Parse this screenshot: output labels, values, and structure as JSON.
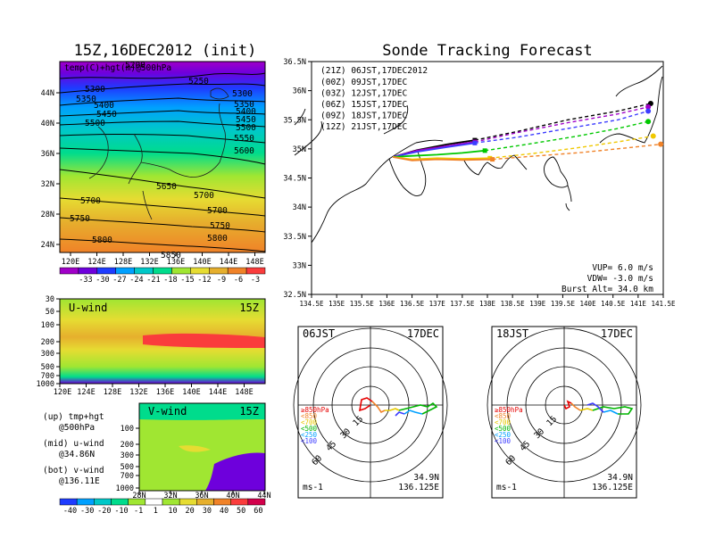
{
  "left": {
    "title": "15Z,16DEC2012 (init)",
    "top_map": {
      "label": "temp(C)+hgt(m)@500hPa",
      "x_ticks": [
        "120E",
        "124E",
        "128E",
        "132E",
        "136E",
        "140E",
        "144E",
        "148E"
      ],
      "y_ticks": [
        "44N",
        "40N",
        "36N",
        "32N",
        "28N",
        "24N"
      ],
      "contour_labels": [
        "5200",
        "5250",
        "5300",
        "5300",
        "5350",
        "5350",
        "5400",
        "5400",
        "5450",
        "5450",
        "5500",
        "5500",
        "5550",
        "5600",
        "5650",
        "5700",
        "5700",
        "5700",
        "5750",
        "5750",
        "5800",
        "5800",
        "5850"
      ],
      "colorbar_labels": [
        "-33",
        "-30",
        "-27",
        "-24",
        "-21",
        "-18",
        "-15",
        "-12",
        "-9",
        "-6",
        "-3"
      ],
      "colorbar_colors": [
        "#a000c8",
        "#6e00dc",
        "#1e3cff",
        "#00a0ff",
        "#00c8c8",
        "#00dc8c",
        "#a0e632",
        "#e6dc32",
        "#e6af2d",
        "#f08228",
        "#fa3c3c"
      ]
    },
    "u_wind": {
      "label": "U-wind",
      "time": "15Z",
      "y_ticks": [
        "30",
        "50",
        "100",
        "200",
        "300",
        "500",
        "700",
        "1000"
      ],
      "x_ticks": [
        "120E",
        "124E",
        "128E",
        "132E",
        "136E",
        "140E",
        "144E",
        "148E"
      ]
    },
    "v_wind": {
      "label": "V-wind",
      "time": "15Z",
      "y_ticks": [
        "100",
        "200",
        "300",
        "500",
        "700",
        "1000"
      ],
      "x_ticks": [
        "28N",
        "32N",
        "36N",
        "40N",
        "44N"
      ]
    },
    "legend_text": [
      {
        "a": "(up) tmp+hgt",
        "b": "@500hPa"
      },
      {
        "a": "(mid) u-wind",
        "b": "@34.86N"
      },
      {
        "a": "(bot) v-wind",
        "b": "@136.11E"
      }
    ],
    "wind_colorbar": {
      "labels": [
        "-40",
        "-30",
        "-20",
        "-10",
        "-1",
        "1",
        "10",
        "20",
        "30",
        "40",
        "50",
        "60"
      ],
      "colors": [
        "#1e3cff",
        "#00a0ff",
        "#00c8c8",
        "#00dc8c",
        "#a0e632",
        "#ffffff",
        "#a0e632",
        "#e6dc32",
        "#e6af2d",
        "#f08228",
        "#fa3c3c",
        "#d2004b"
      ]
    }
  },
  "right": {
    "title": "Sonde Tracking Forecast",
    "header_time": "(21Z) 06JST,17DEC2012",
    "tracks": [
      {
        "label": "(00Z) 09JST,17DEC",
        "color": "#a000c8"
      },
      {
        "label": "(03Z) 12JST,17DEC",
        "color": "#3c3cff"
      },
      {
        "label": "(06Z) 15JST,17DEC",
        "color": "#00c800"
      },
      {
        "label": "(09Z) 18JST,17DEC",
        "color": "#f0c800"
      },
      {
        "label": "(12Z) 21JST,17DEC",
        "color": "#f08228"
      }
    ],
    "x_ticks": [
      "134.5E",
      "135E",
      "135.5E",
      "136E",
      "136.5E",
      "137E",
      "137.5E",
      "138E",
      "138.5E",
      "139E",
      "139.5E",
      "140E",
      "140.5E",
      "141E",
      "141.5E"
    ],
    "y_ticks": [
      "36.5N",
      "36N",
      "35.5N",
      "35N",
      "34.5N",
      "34N",
      "33.5N",
      "33N",
      "32.5N"
    ],
    "params": [
      "VUP=  6.0 m/s",
      "VDW= -3.0 m/s",
      "Burst Alt= 34.0 km"
    ]
  },
  "hodographs": [
    {
      "time": "06JST",
      "date": "17DEC",
      "lat": "34.9N",
      "lon": "136.125E",
      "unit": "ms-1",
      "rings": [
        "15",
        "30",
        "45",
        "60"
      ],
      "levels": [
        {
          "t": "≥850hPa",
          "c": "#e60000"
        },
        {
          "t": "<850",
          "c": "#f08228"
        },
        {
          "t": "<700",
          "c": "#e6c800"
        },
        {
          "t": "<500",
          "c": "#00b400"
        },
        {
          "t": "<250",
          "c": "#00a0ff"
        },
        {
          "t": "<100",
          "c": "#3c3cff"
        }
      ]
    },
    {
      "time": "18JST",
      "date": "17DEC",
      "lat": "34.9N",
      "lon": "136.125E",
      "unit": "ms-1",
      "rings": [
        "15",
        "30",
        "45",
        "60"
      ],
      "levels": [
        {
          "t": "≥850hPa",
          "c": "#e60000"
        },
        {
          "t": "<850",
          "c": "#f08228"
        },
        {
          "t": "<700",
          "c": "#e6c800"
        },
        {
          "t": "<500",
          "c": "#00b400"
        },
        {
          "t": "<250",
          "c": "#00a0ff"
        },
        {
          "t": "<100",
          "c": "#3c3cff"
        }
      ]
    }
  ],
  "chart_data": {
    "type": "line",
    "title": "Sonde Tracking Forecast",
    "xlim": [
      134.5,
      141.5
    ],
    "ylim": [
      32.5,
      36.5
    ],
    "launch": {
      "lon": 136.12,
      "lat": 34.86
    },
    "series": [
      {
        "name": "(21Z) 06JST,17DEC2012",
        "color": "#000000",
        "solid": [
          [
            136.12,
            34.86
          ],
          [
            136.6,
            34.98
          ],
          [
            137.2,
            35.08
          ],
          [
            137.75,
            35.15
          ]
        ],
        "dash": [
          [
            137.75,
            35.15
          ],
          [
            138.6,
            35.3
          ],
          [
            139.6,
            35.5
          ],
          [
            140.6,
            35.65
          ],
          [
            141.25,
            35.78
          ]
        ],
        "marker": [
          137.75,
          35.15
        ],
        "end": [
          141.25,
          35.78
        ]
      },
      {
        "name": "(00Z) 09JST,17DEC",
        "color": "#a000c8",
        "solid": [
          [
            136.12,
            34.86
          ],
          [
            136.6,
            34.97
          ],
          [
            137.2,
            35.05
          ],
          [
            137.75,
            35.12
          ]
        ],
        "dash": [
          [
            137.75,
            35.12
          ],
          [
            138.6,
            35.28
          ],
          [
            139.6,
            35.45
          ],
          [
            140.6,
            35.6
          ],
          [
            141.2,
            35.72
          ]
        ],
        "marker": [
          137.75,
          35.12
        ],
        "end": [
          141.2,
          35.72
        ]
      },
      {
        "name": "(03Z) 12JST,17DEC",
        "color": "#3c3cff",
        "solid": [
          [
            136.12,
            34.86
          ],
          [
            136.6,
            34.95
          ],
          [
            137.2,
            35.03
          ],
          [
            137.75,
            35.1
          ]
        ],
        "dash": [
          [
            137.75,
            35.1
          ],
          [
            138.6,
            35.2
          ],
          [
            139.6,
            35.35
          ],
          [
            140.6,
            35.5
          ],
          [
            141.2,
            35.65
          ]
        ],
        "marker": [
          137.75,
          35.1
        ],
        "end": [
          141.2,
          35.65
        ]
      },
      {
        "name": "(06Z) 15JST,17DEC",
        "color": "#00c800",
        "solid": [
          [
            136.12,
            34.86
          ],
          [
            136.5,
            34.88
          ],
          [
            137.0,
            34.9
          ],
          [
            137.5,
            34.93
          ],
          [
            137.95,
            34.97
          ]
        ],
        "dash": [
          [
            137.95,
            34.97
          ],
          [
            138.8,
            35.08
          ],
          [
            139.8,
            35.22
          ],
          [
            140.6,
            35.35
          ],
          [
            141.2,
            35.47
          ]
        ],
        "marker": [
          137.95,
          34.97
        ],
        "end": [
          141.2,
          35.47
        ]
      },
      {
        "name": "(09Z) 18JST,17DEC",
        "color": "#f0c800",
        "solid": [
          [
            136.12,
            34.86
          ],
          [
            136.5,
            34.82
          ],
          [
            137.0,
            34.84
          ],
          [
            137.5,
            34.83
          ],
          [
            138.05,
            34.84
          ]
        ],
        "dash": [
          [
            138.05,
            34.84
          ],
          [
            138.9,
            34.92
          ],
          [
            139.8,
            35.02
          ],
          [
            140.6,
            35.12
          ],
          [
            141.3,
            35.22
          ]
        ],
        "marker": [
          138.05,
          34.84
        ],
        "end": [
          141.3,
          35.22
        ]
      },
      {
        "name": "(12Z) 21JST,17DEC",
        "color": "#f08228",
        "solid": [
          [
            136.12,
            34.86
          ],
          [
            136.5,
            34.8
          ],
          [
            137.0,
            34.82
          ],
          [
            137.5,
            34.81
          ],
          [
            138.1,
            34.82
          ]
        ],
        "dash": [
          [
            138.1,
            34.82
          ],
          [
            139.0,
            34.88
          ],
          [
            139.9,
            34.94
          ],
          [
            140.8,
            35.02
          ],
          [
            141.45,
            35.08
          ]
        ],
        "marker": [
          138.1,
          34.82
        ],
        "end": [
          141.45,
          35.08
        ]
      }
    ]
  }
}
